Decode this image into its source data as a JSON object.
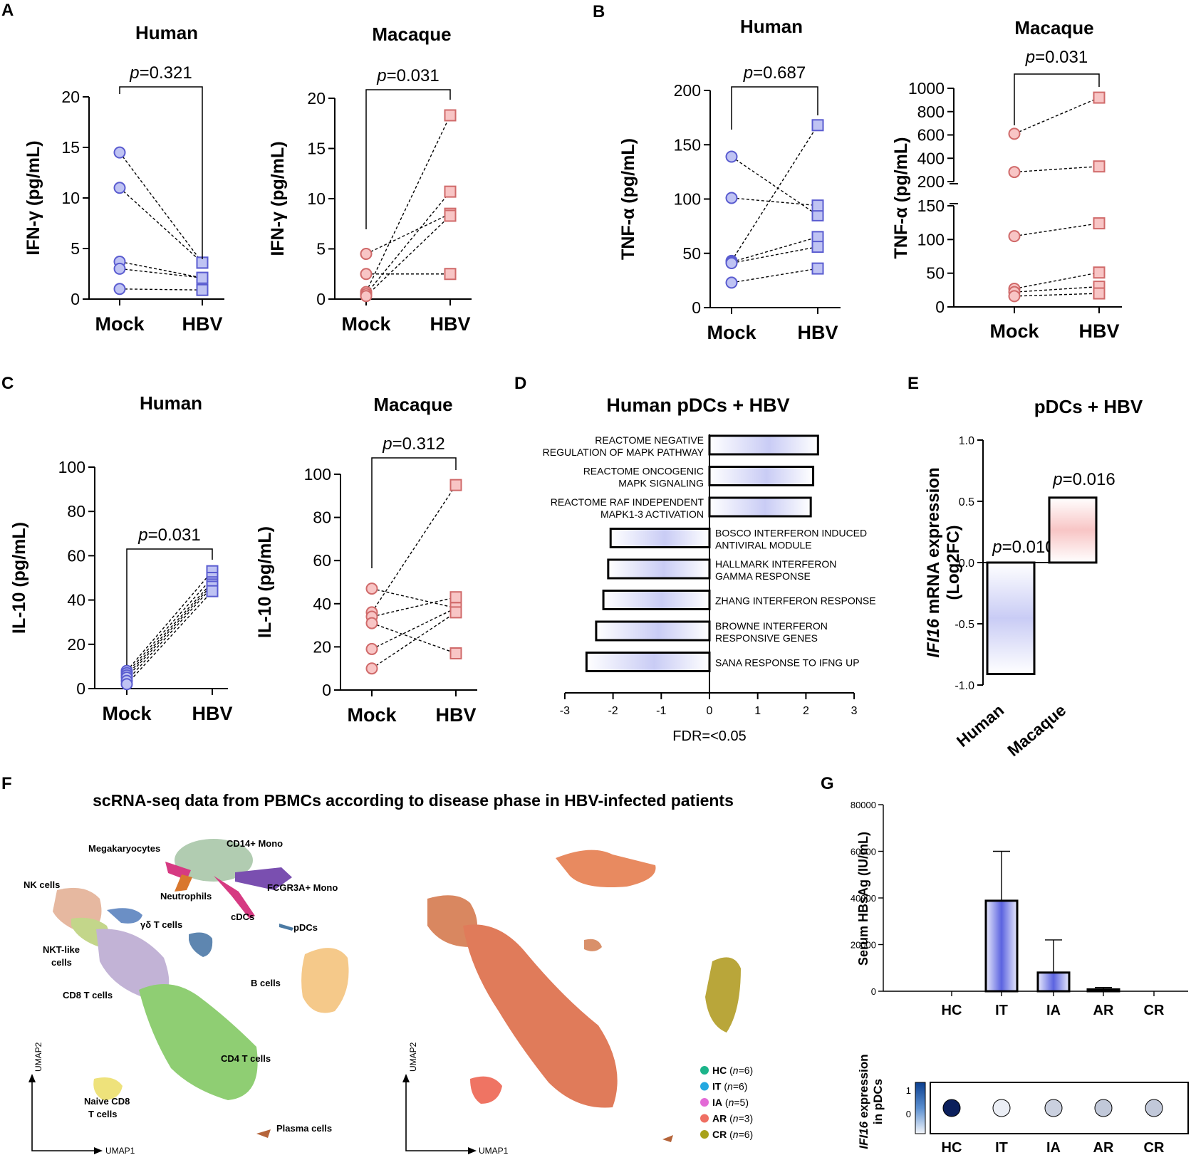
{
  "panel_letters": [
    "A",
    "B",
    "C",
    "D",
    "E",
    "F",
    "G"
  ],
  "chart_data": [
    {
      "id": "A1",
      "type": "scatter",
      "title": "Human",
      "ylabel": "IFN-γ (pg/mL)",
      "categories": [
        "Mock",
        "HBV"
      ],
      "ylim": [
        0,
        20
      ],
      "yticks": [
        0,
        5,
        10,
        15,
        20
      ],
      "pairs": [
        [
          14.5,
          3.6
        ],
        [
          11.0,
          3.6
        ],
        [
          3.7,
          2.1
        ],
        [
          3.0,
          2.1
        ],
        [
          1.0,
          0.9
        ]
      ],
      "pvalue": "0.321"
    },
    {
      "id": "A2",
      "type": "scatter",
      "title": "Macaque",
      "ylabel": "IFN-γ (pg/mL)",
      "categories": [
        "Mock",
        "HBV"
      ],
      "ylim": [
        0,
        20
      ],
      "yticks": [
        0,
        5,
        10,
        15,
        20
      ],
      "pairs": [
        [
          4.5,
          8.5
        ],
        [
          2.5,
          2.5
        ],
        [
          0.7,
          18.3
        ],
        [
          0.5,
          10.7
        ],
        [
          0.3,
          8.3
        ]
      ],
      "pvalue": "0.031"
    },
    {
      "id": "B1",
      "type": "scatter",
      "title": "Human",
      "ylabel": "TNF-α (pg/mL)",
      "categories": [
        "Mock",
        "HBV"
      ],
      "ylim": [
        0,
        200
      ],
      "yticks": [
        0,
        50,
        100,
        150,
        200
      ],
      "pairs": [
        [
          139,
          85
        ],
        [
          101,
          94
        ],
        [
          43,
          168
        ],
        [
          42,
          65
        ],
        [
          41,
          56
        ],
        [
          23,
          36
        ]
      ],
      "pvalue": "0.687"
    },
    {
      "id": "B2",
      "type": "scatter",
      "title": "Macaque",
      "ylabel": "TNF-α (pg/mL)",
      "categories": [
        "Mock",
        "HBV"
      ],
      "ylim": [
        0,
        1000
      ],
      "segments": [
        {
          "range": [
            0,
            150
          ],
          "ticks": [
            0,
            50,
            100,
            150
          ]
        },
        {
          "range": [
            200,
            1000
          ],
          "ticks": [
            200,
            400,
            600,
            800,
            1000
          ]
        }
      ],
      "pairs": [
        [
          610,
          920
        ],
        [
          282,
          330
        ],
        [
          105,
          124
        ],
        [
          27,
          51
        ],
        [
          22,
          30
        ],
        [
          16,
          20
        ]
      ],
      "pvalue": "0.031"
    },
    {
      "id": "C1",
      "type": "scatter",
      "title": "Human",
      "ylabel": "IL-10 (pg/mL)",
      "categories": [
        "Mock",
        "HBV"
      ],
      "ylim": [
        0,
        100
      ],
      "yticks": [
        0,
        20,
        40,
        60,
        80,
        100
      ],
      "pairs": [
        [
          8,
          53
        ],
        [
          7,
          50
        ],
        [
          6,
          48
        ],
        [
          5,
          47
        ],
        [
          3.5,
          46
        ],
        [
          2,
          44
        ]
      ],
      "pvalue": "0.031"
    },
    {
      "id": "C2",
      "type": "scatter",
      "title": "Macaque",
      "ylabel": "IL-10 (pg/mL)",
      "categories": [
        "Mock",
        "HBV"
      ],
      "ylim": [
        0,
        100
      ],
      "yticks": [
        0,
        20,
        40,
        60,
        80,
        100
      ],
      "pairs": [
        [
          47,
          38
        ],
        [
          36,
          95
        ],
        [
          34,
          43
        ],
        [
          31,
          17
        ],
        [
          19,
          38
        ],
        [
          10,
          36
        ]
      ],
      "pvalue": "0.312"
    },
    {
      "id": "D",
      "type": "bar",
      "orientation": "horizontal",
      "title": "Human pDCs + HBV",
      "xlabel": "FDR=<0.05",
      "xlim": [
        -3,
        3
      ],
      "xticks": [
        -3,
        -2,
        -1,
        0,
        1,
        2,
        3
      ],
      "bars": [
        {
          "l1": "REACTOME NEGATIVE",
          "l2": "REGULATION OF MAPK PATHWAY",
          "value": 2.25
        },
        {
          "l1": "REACTOME ONCOGENIC",
          "l2": "MAPK SIGNALING",
          "value": 2.15
        },
        {
          "l1": "REACTOME RAF INDEPENDENT",
          "l2": "MAPK1-3 ACTIVATION",
          "value": 2.1
        },
        {
          "l1": "BOSCO INTERFERON INDUCED",
          "l2": "ANTIVIRAL MODULE",
          "value": -2.05
        },
        {
          "l1": "HALLMARK INTERFERON",
          "l2": "GAMMA RESPONSE",
          "value": -2.1
        },
        {
          "l1": "ZHANG INTERFERON RESPONSE",
          "l2": "",
          "value": -2.2
        },
        {
          "l1": "BROWNE INTERFERON",
          "l2": "RESPONSIVE GENES",
          "value": -2.35
        },
        {
          "l1": "SANA RESPONSE TO IFNG UP",
          "l2": "",
          "value": -2.55
        }
      ]
    },
    {
      "id": "E",
      "type": "bar",
      "title": "pDCs + HBV",
      "ylabel_italic": "IFI16",
      "ylabel_rest": " mRNA expression",
      "ylabel_line2": "(Log2FC)",
      "categories": [
        "Human",
        "Macaque"
      ],
      "values": [
        -0.91,
        0.53
      ],
      "pvalues": [
        "0.010",
        "0.016"
      ],
      "ylim": [
        -1,
        1
      ],
      "ytick_labels": [
        "-1.0",
        "-0.5",
        "0.0",
        "0.5",
        "1.0"
      ]
    },
    {
      "id": "G1",
      "type": "bar",
      "ylabel": "Serum HBsAg (IU/mL)",
      "categories": [
        "HC",
        "IT",
        "IA",
        "AR",
        "CR"
      ],
      "values": [
        0,
        38800,
        8000,
        800,
        0
      ],
      "errors": [
        0,
        21200,
        14000,
        800,
        0
      ],
      "ylim": [
        0,
        80000
      ],
      "yticks": [
        0,
        20000,
        40000,
        60000,
        80000
      ]
    },
    {
      "id": "G2",
      "type": "heatmap",
      "ylabel_italic": "IFI16",
      "ylabel_rest": " expression",
      "ylabel_line2": "in pDCs",
      "categories": [
        "HC",
        "IT",
        "IA",
        "AR",
        "CR"
      ],
      "values": [
        1.2,
        -0.15,
        0.05,
        0.1,
        0.1
      ],
      "colorbar_ticks": [
        "1",
        "0"
      ]
    }
  ],
  "f": {
    "title": "scRNA-seq data from PBMCs according to disease phase in HBV-infected patients",
    "clusters": [
      "CD14+ Mono",
      "Megakaryocytes",
      "FCGR3A+ Mono",
      "NK cells",
      "Neutrophils",
      "cDCs",
      "pDCs",
      "γδ T cells",
      "NKT-like",
      "cells",
      "B cells",
      "CD8 T cells",
      "CD4 T cells",
      "Naive CD8",
      "T cells",
      "Plasma cells"
    ],
    "axis_x": "UMAP1",
    "axis_y": "UMAP2",
    "legend": [
      {
        "name": "HC",
        "n": "6",
        "color": "#1bb48a"
      },
      {
        "name": "IT",
        "n": "6",
        "color": "#24a8e0"
      },
      {
        "name": "IA",
        "n": "5",
        "color": "#e36ad6"
      },
      {
        "name": "AR",
        "n": "3",
        "color": "#ef6f63"
      },
      {
        "name": "CR",
        "n": "6",
        "color": "#a8a21a"
      }
    ]
  },
  "colors": {
    "blue_fill": "#bfc3f3",
    "blue_edge": "#5a5cd0",
    "pink_fill": "#f8c5c5",
    "pink_edge": "#d06a6a",
    "navy": "#0b1f5c"
  }
}
